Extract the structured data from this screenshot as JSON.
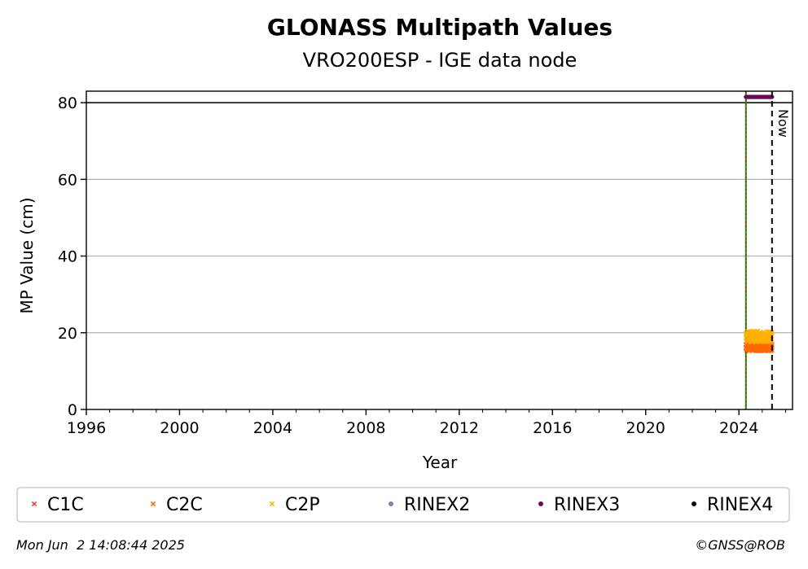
{
  "chart_data": {
    "type": "scatter",
    "title": "GLONASS Multipath Values",
    "subtitle": "VRO200ESP - IGE data node",
    "xlabel": "Year",
    "ylabel": "MP Value (cm)",
    "xlim": [
      1996,
      2026.3
    ],
    "ylim": [
      0,
      83
    ],
    "x_ticks": [
      1996,
      2000,
      2004,
      2008,
      2012,
      2016,
      2020,
      2024
    ],
    "y_ticks": [
      0,
      20,
      40,
      60,
      80
    ],
    "y_ticks_labels": [
      "0",
      "20",
      "40",
      "60",
      "80"
    ],
    "x_ticks_labels": [
      "1996",
      "2000",
      "2004",
      "2008",
      "2012",
      "2016",
      "2020",
      "2024"
    ],
    "grid": "y",
    "reference_line_y": 80,
    "start_line_x": 2024.3,
    "now_x": 2025.42,
    "now_label": "Now",
    "series": [
      {
        "name": "C1C",
        "marker": "x",
        "color": "#e8432c",
        "x_range": [
          2024.3,
          2025.42
        ],
        "y_mean": 16.5,
        "y_spread": 1.2
      },
      {
        "name": "C2C",
        "marker": "x",
        "color": "#ff6a00",
        "x_range": [
          2024.3,
          2025.42
        ],
        "y_mean": 16.5,
        "y_spread": 1.3
      },
      {
        "name": "C2P",
        "marker": "x",
        "color": "#ffb000",
        "x_range": [
          2024.3,
          2025.42
        ],
        "y_mean": 19.0,
        "y_spread": 1.4
      },
      {
        "name": "RINEX2",
        "marker": "dot",
        "color": "#7b7bbf",
        "x_range": null,
        "y_mean": null
      },
      {
        "name": "RINEX3",
        "marker": "dot",
        "color": "#6a0a5a",
        "x_range": [
          2024.3,
          2025.42
        ],
        "y_mean": 81.5,
        "y_spread": 0
      },
      {
        "name": "RINEX4",
        "marker": "dot",
        "color": "#1a0014",
        "x_range": null,
        "y_mean": null
      }
    ],
    "legend_placement": "bottom"
  },
  "footer": {
    "timestamp": "Mon Jun  2 14:08:44 2025",
    "credit": "©GNSS@ROB"
  }
}
